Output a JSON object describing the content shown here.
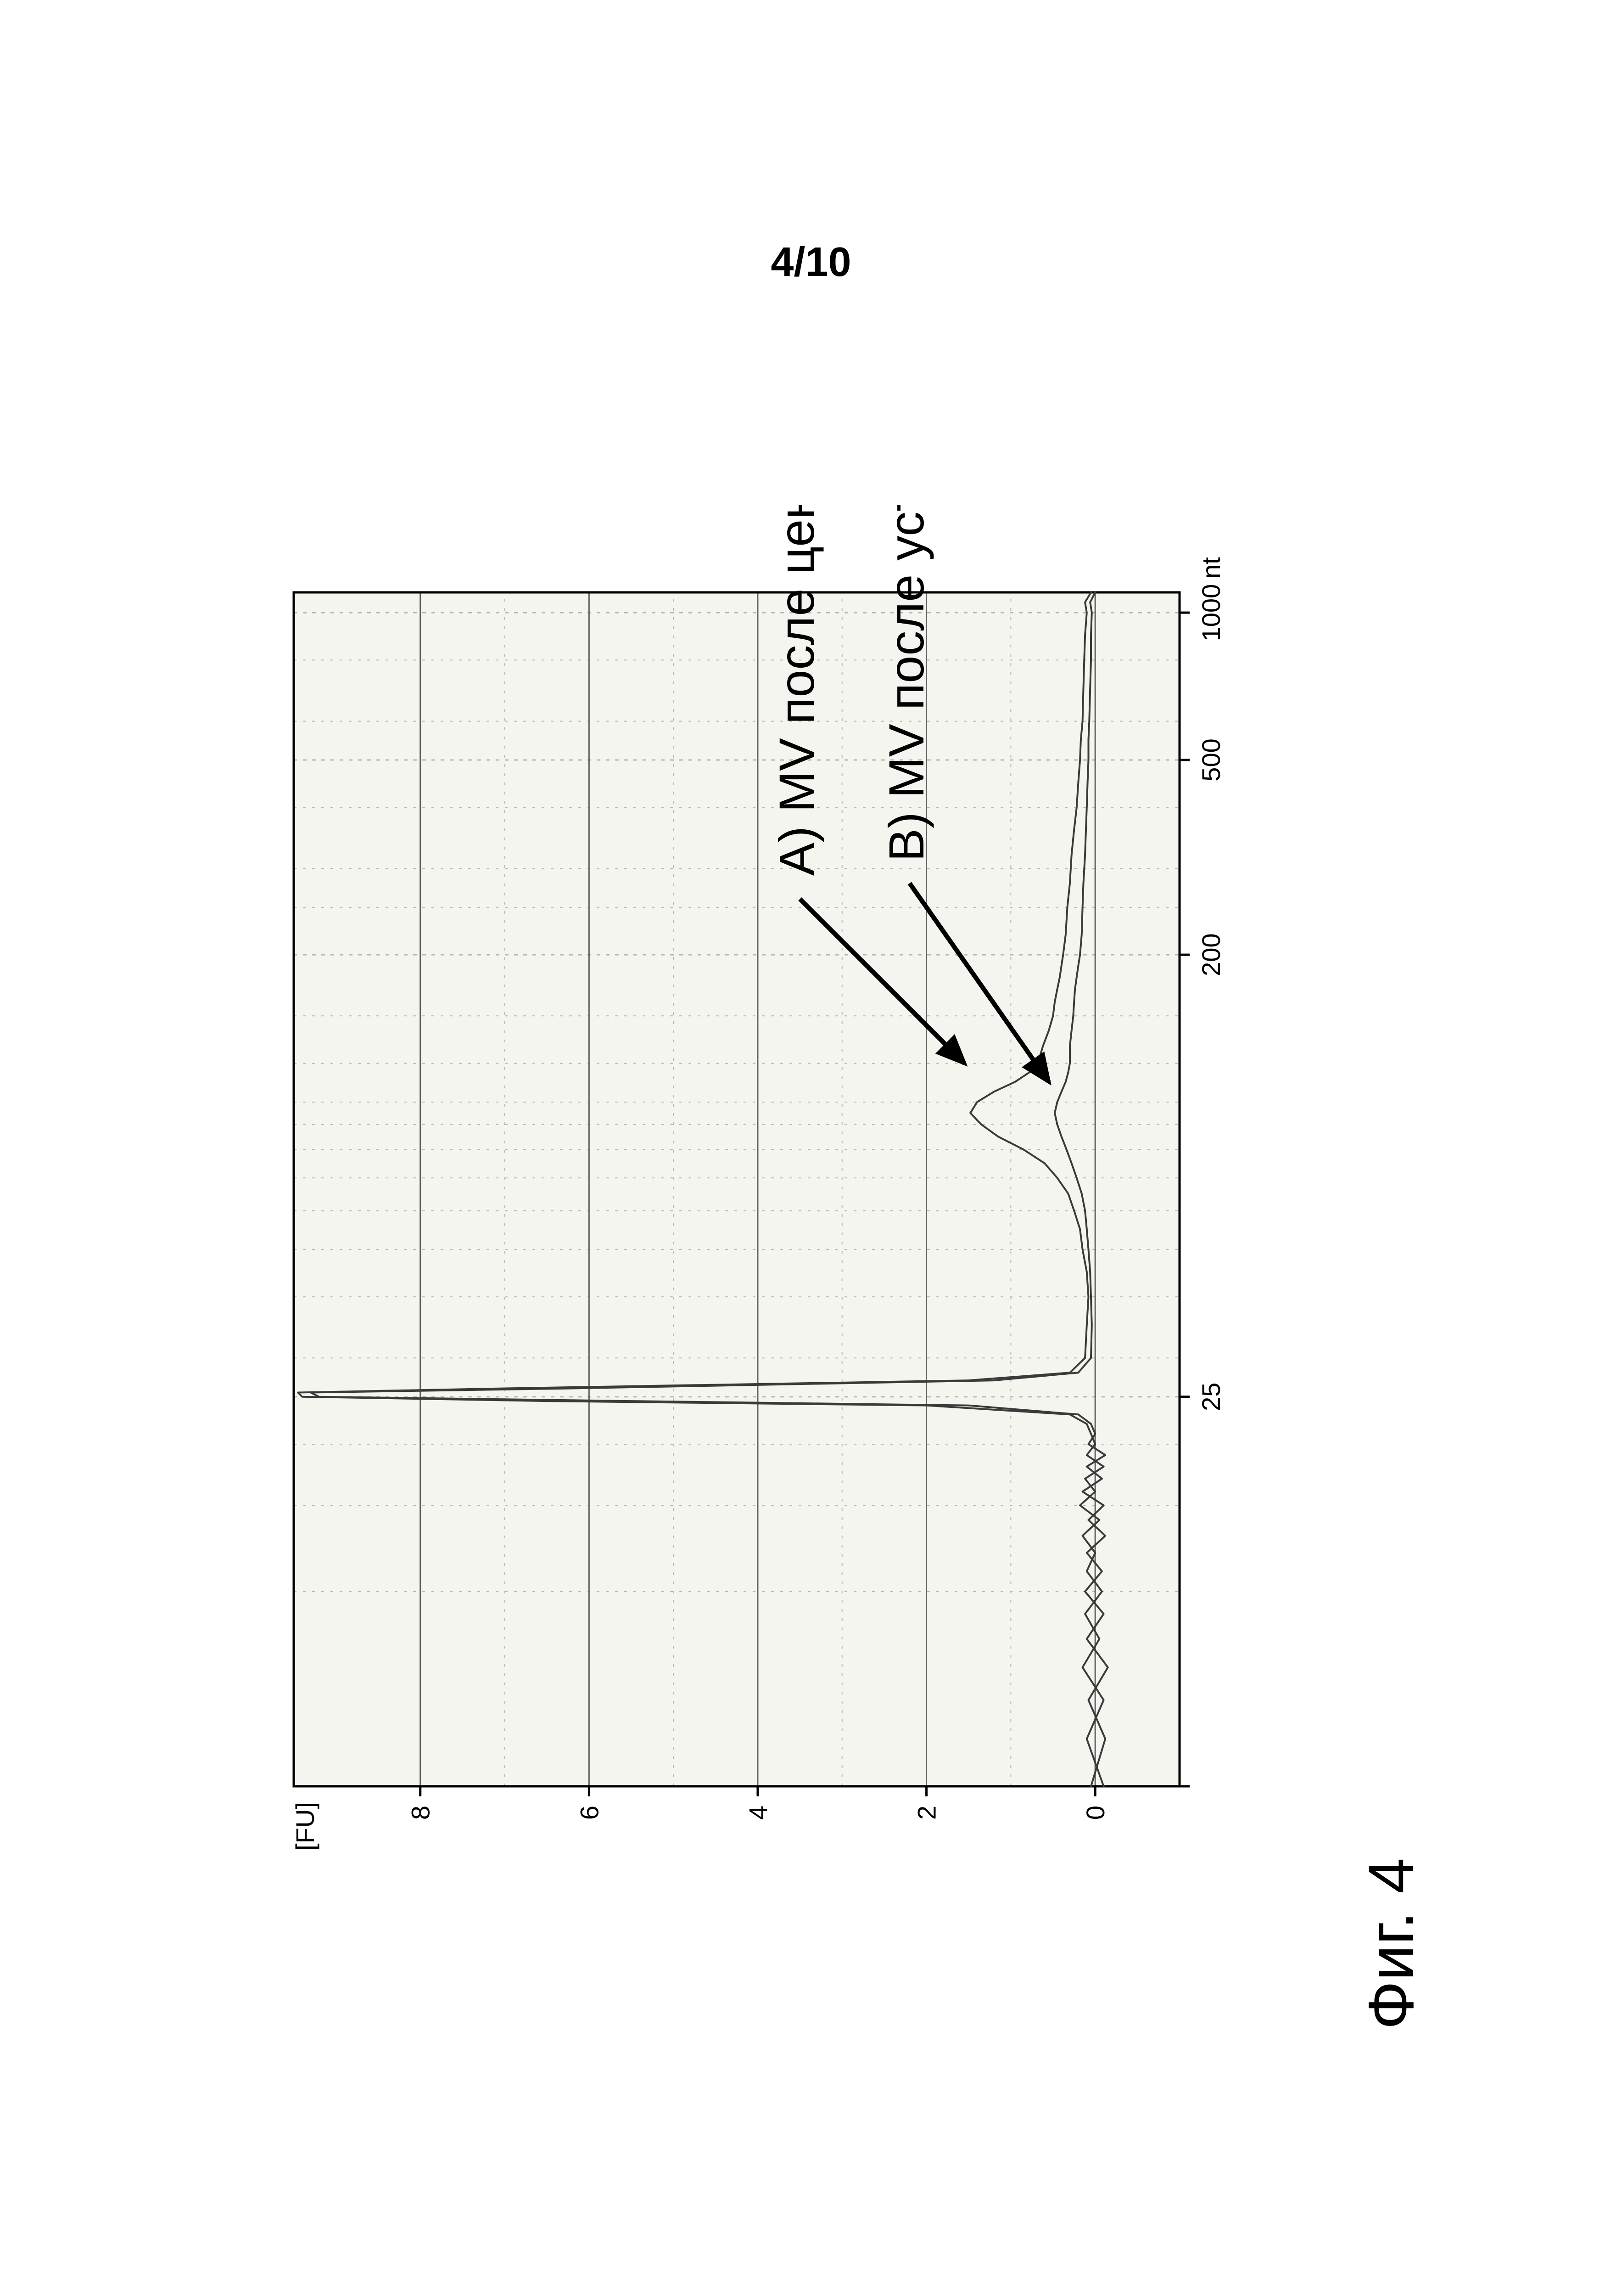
{
  "page_number_label": "4/10",
  "figure_label": "Фиг. 4",
  "chart": {
    "type": "line",
    "background_color": "#ffffff",
    "plot_bgcolor": "#f5f5f0",
    "grid_major_color": "#606060",
    "grid_minor_color": "#b8b8b0",
    "axis_color": "#000000",
    "axis_font_size": 56,
    "label_font_size": 62,
    "annotation_font_size": 108,
    "annotation_color": "#000000",
    "line_color": "#3a3a3a",
    "line_width": 4,
    "arrow_color": "#000000",
    "arrow_width": 10,
    "ylabel": "[FU]",
    "ylim": [
      -1,
      9.5
    ],
    "yticks": [
      0,
      2,
      4,
      6,
      8
    ],
    "xlabel_unit": "nt",
    "x_scale": "log",
    "xticks": [
      4,
      25,
      200,
      500,
      1000
    ],
    "xtick_labels": [
      "",
      "25",
      "200",
      "500",
      "1000"
    ],
    "x_minor_positions": [
      4,
      10,
      15,
      20,
      25,
      30,
      40,
      50,
      60,
      70,
      80,
      90,
      100,
      120,
      150,
      200,
      250,
      300,
      400,
      500,
      600,
      800,
      1000,
      1100
    ],
    "series": [
      {
        "name": "A",
        "annotation": "A) MV после центрифуги",
        "points": [
          [
            4,
            -0.1
          ],
          [
            5,
            0.1
          ],
          [
            6,
            -0.1
          ],
          [
            7,
            0.15
          ],
          [
            8,
            -0.05
          ],
          [
            9,
            0.12
          ],
          [
            10,
            -0.08
          ],
          [
            11,
            0.1
          ],
          [
            12,
            0.0
          ],
          [
            13,
            0.15
          ],
          [
            14,
            -0.05
          ],
          [
            15,
            0.18
          ],
          [
            16,
            0.0
          ],
          [
            17,
            0.12
          ],
          [
            18,
            -0.1
          ],
          [
            19,
            0.1
          ],
          [
            20,
            0.0
          ],
          [
            21,
            0.05
          ],
          [
            22,
            0.1
          ],
          [
            23,
            0.3
          ],
          [
            24,
            2.0
          ],
          [
            24.5,
            6.5
          ],
          [
            25,
            9.4
          ],
          [
            25.5,
            9.45
          ],
          [
            26,
            7.0
          ],
          [
            27,
            1.5
          ],
          [
            28,
            0.3
          ],
          [
            30,
            0.12
          ],
          [
            35,
            0.1
          ],
          [
            40,
            0.08
          ],
          [
            45,
            0.1
          ],
          [
            50,
            0.15
          ],
          [
            55,
            0.18
          ],
          [
            60,
            0.25
          ],
          [
            65,
            0.32
          ],
          [
            70,
            0.45
          ],
          [
            75,
            0.6
          ],
          [
            80,
            0.85
          ],
          [
            85,
            1.15
          ],
          [
            90,
            1.35
          ],
          [
            95,
            1.48
          ],
          [
            100,
            1.4
          ],
          [
            105,
            1.2
          ],
          [
            110,
            0.95
          ],
          [
            115,
            0.78
          ],
          [
            120,
            0.68
          ],
          [
            130,
            0.62
          ],
          [
            140,
            0.55
          ],
          [
            150,
            0.5
          ],
          [
            160,
            0.48
          ],
          [
            170,
            0.45
          ],
          [
            180,
            0.42
          ],
          [
            190,
            0.4
          ],
          [
            200,
            0.38
          ],
          [
            220,
            0.35
          ],
          [
            250,
            0.33
          ],
          [
            280,
            0.3
          ],
          [
            320,
            0.28
          ],
          [
            360,
            0.25
          ],
          [
            400,
            0.22
          ],
          [
            450,
            0.2
          ],
          [
            500,
            0.18
          ],
          [
            550,
            0.17
          ],
          [
            600,
            0.15
          ],
          [
            700,
            0.14
          ],
          [
            800,
            0.13
          ],
          [
            900,
            0.12
          ],
          [
            1000,
            0.1
          ],
          [
            1050,
            0.12
          ],
          [
            1100,
            0.05
          ]
        ]
      },
      {
        "name": "B",
        "annotation": "B) MV после устройства с HF",
        "points": [
          [
            4,
            0.05
          ],
          [
            5,
            -0.12
          ],
          [
            6,
            0.08
          ],
          [
            7,
            -0.15
          ],
          [
            8,
            0.1
          ],
          [
            9,
            -0.1
          ],
          [
            10,
            0.12
          ],
          [
            11,
            -0.08
          ],
          [
            12,
            0.1
          ],
          [
            13,
            -0.12
          ],
          [
            14,
            0.08
          ],
          [
            15,
            -0.1
          ],
          [
            16,
            0.15
          ],
          [
            17,
            -0.08
          ],
          [
            18,
            0.1
          ],
          [
            19,
            -0.12
          ],
          [
            20,
            0.08
          ],
          [
            21,
            0.0
          ],
          [
            22,
            0.05
          ],
          [
            23,
            0.2
          ],
          [
            24,
            1.5
          ],
          [
            24.5,
            5.5
          ],
          [
            25,
            9.2
          ],
          [
            25.5,
            9.3
          ],
          [
            26,
            6.2
          ],
          [
            27,
            1.2
          ],
          [
            28,
            0.2
          ],
          [
            30,
            0.05
          ],
          [
            35,
            0.04
          ],
          [
            40,
            0.05
          ],
          [
            45,
            0.06
          ],
          [
            50,
            0.08
          ],
          [
            55,
            0.1
          ],
          [
            60,
            0.12
          ],
          [
            65,
            0.16
          ],
          [
            70,
            0.22
          ],
          [
            75,
            0.28
          ],
          [
            80,
            0.34
          ],
          [
            85,
            0.4
          ],
          [
            90,
            0.45
          ],
          [
            95,
            0.48
          ],
          [
            100,
            0.45
          ],
          [
            105,
            0.4
          ],
          [
            110,
            0.35
          ],
          [
            115,
            0.32
          ],
          [
            120,
            0.3
          ],
          [
            130,
            0.3
          ],
          [
            140,
            0.28
          ],
          [
            150,
            0.26
          ],
          [
            160,
            0.25
          ],
          [
            170,
            0.24
          ],
          [
            180,
            0.22
          ],
          [
            190,
            0.2
          ],
          [
            200,
            0.18
          ],
          [
            220,
            0.16
          ],
          [
            250,
            0.15
          ],
          [
            280,
            0.14
          ],
          [
            320,
            0.12
          ],
          [
            360,
            0.11
          ],
          [
            400,
            0.1
          ],
          [
            450,
            0.09
          ],
          [
            500,
            0.08
          ],
          [
            550,
            0.08
          ],
          [
            600,
            0.07
          ],
          [
            700,
            0.06
          ],
          [
            800,
            0.05
          ],
          [
            900,
            0.05
          ],
          [
            1000,
            0.04
          ],
          [
            1050,
            0.06
          ],
          [
            1100,
            0.0
          ]
        ]
      }
    ],
    "arrows": [
      {
        "from": [
          260,
          3.5
        ],
        "to": [
          120,
          1.55
        ]
      },
      {
        "from": [
          280,
          2.2
        ],
        "to": [
          110,
          0.55
        ]
      }
    ],
    "annotation_A_pos": [
      290,
      3.5
    ],
    "annotation_B_pos": [
      310,
      2.2
    ]
  }
}
